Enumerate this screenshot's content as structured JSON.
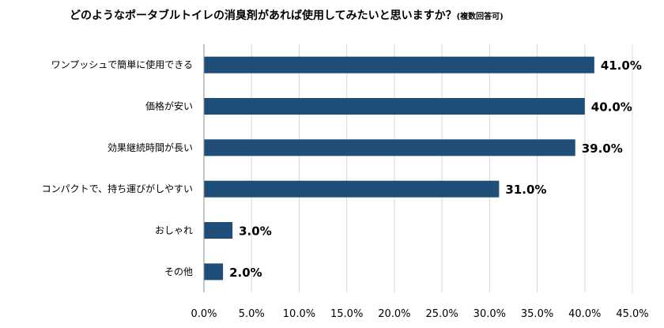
{
  "chart_data": {
    "type": "bar",
    "orientation": "horizontal",
    "title": "どのようなポータブルトイレの消臭剤があれば使用してみたいと思いますか？",
    "subtitle": "(複数回答可)",
    "categories": [
      "ワンプッシュで簡単に使用できる",
      "価格が安い",
      "効果継続時間が長い",
      "コンパクトで、持ち運びがしやすい",
      "おしゃれ",
      "その他"
    ],
    "values": [
      41.0,
      40.0,
      39.0,
      31.0,
      3.0,
      2.0
    ],
    "value_labels": [
      "41.0%",
      "40.0%",
      "39.0%",
      "31.0%",
      "3.0%",
      "2.0%"
    ],
    "xlim": [
      0,
      45
    ],
    "xticks": [
      0,
      5,
      10,
      15,
      20,
      25,
      30,
      35,
      40,
      45
    ],
    "xtick_labels": [
      "0.0%",
      "5.0%",
      "10.0%",
      "15.0%",
      "20.0%",
      "25.0%",
      "30.0%",
      "35.0%",
      "40.0%",
      "45.0%"
    ],
    "xlabel": "",
    "ylabel": "",
    "grid": true,
    "legend": false,
    "bar_color": "#1f4e79",
    "grid_color": "#d9d9d9"
  }
}
